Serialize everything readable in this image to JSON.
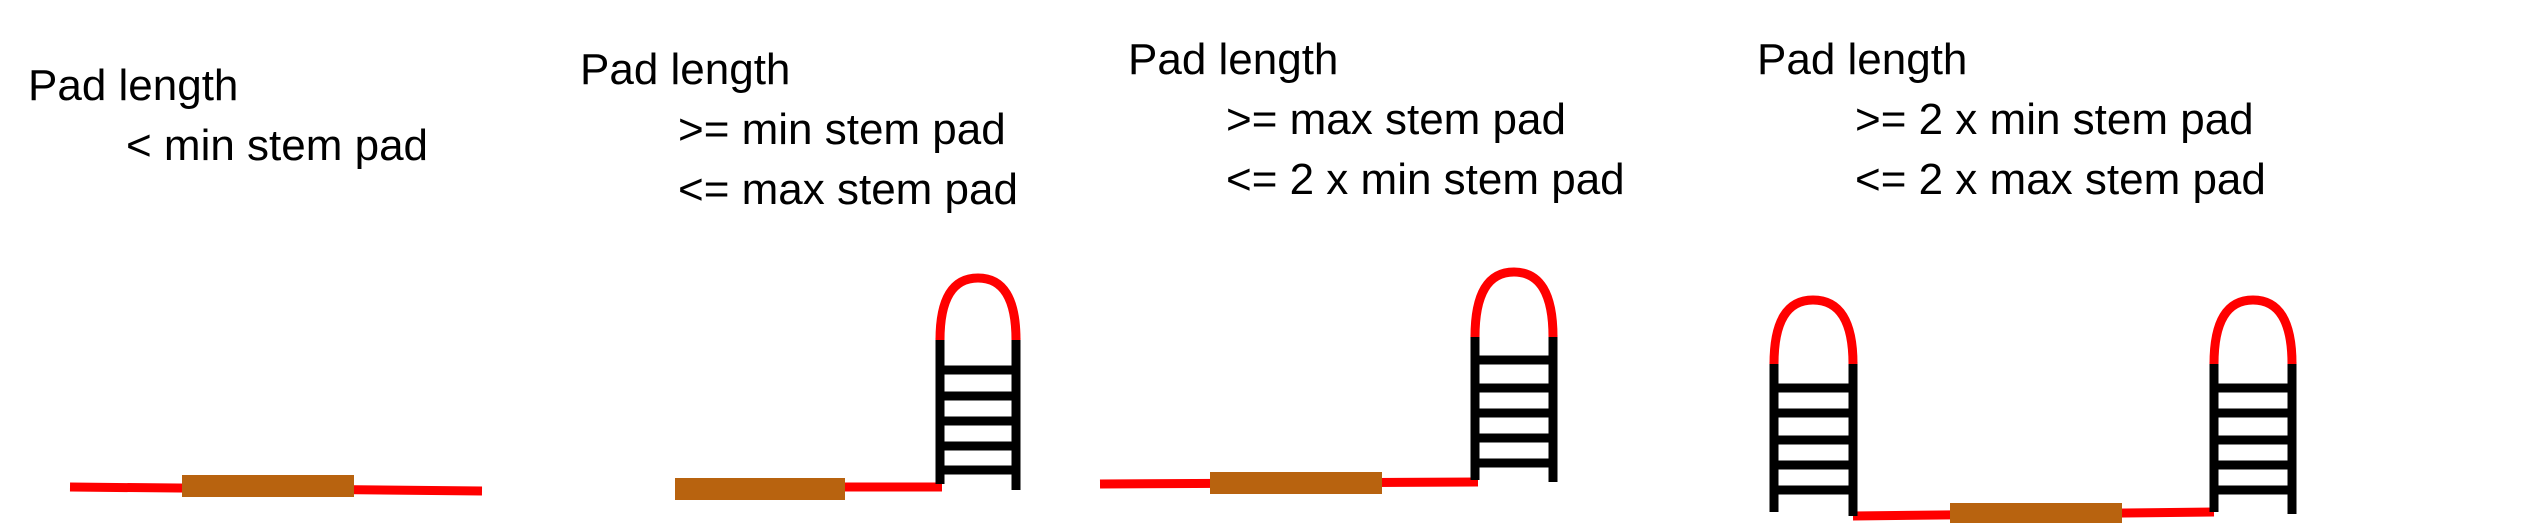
{
  "colors": {
    "loop": "#ff0000",
    "linker": "#ff0000",
    "pad": "#b8630f",
    "stem": "#000000",
    "text": "#000000"
  },
  "panels": [
    {
      "title": "Pad length",
      "conditions": [
        "< min stem pad"
      ]
    },
    {
      "title": "Pad length",
      "conditions": [
        ">= min stem pad",
        "<= max stem pad"
      ]
    },
    {
      "title": "Pad length",
      "conditions": [
        ">= max stem pad",
        "<= 2 x min stem pad"
      ]
    },
    {
      "title": "Pad length",
      "conditions": [
        ">= 2 x min stem pad",
        "<= 2 x max stem pad"
      ]
    }
  ]
}
